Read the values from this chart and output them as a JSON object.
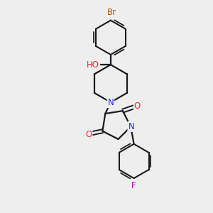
{
  "bg_color": "#eeeeee",
  "bond_color": "#1a1a1a",
  "bond_width": 1.6,
  "atom_colors": {
    "N": "#2020ff",
    "O": "#ff2020",
    "Br": "#bb5500",
    "F": "#bb00bb"
  },
  "font_size": 8.5,
  "scale": 1.0
}
